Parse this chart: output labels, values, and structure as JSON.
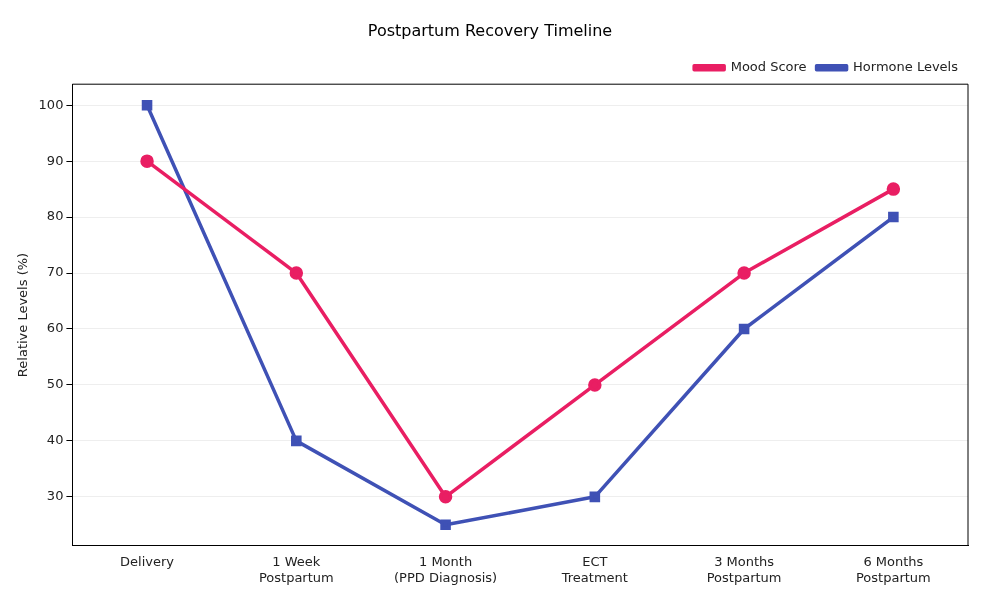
{
  "chart_data": {
    "type": "line",
    "title": "Postpartum Recovery Timeline",
    "ylabel": "Relative Levels (%)",
    "categories": [
      "Delivery",
      "1 Week\nPostpartum",
      "1 Month\n(PPD Diagnosis)",
      "ECT\nTreatment",
      "3 Months\nPostpartum",
      "6 Months\nPostpartum"
    ],
    "series": [
      {
        "name": "Mood Score",
        "color": "#e91e63",
        "marker": "circle",
        "values": [
          90,
          70,
          30,
          50,
          70,
          85
        ]
      },
      {
        "name": "Hormone Levels",
        "color": "#3f51b5",
        "marker": "square",
        "values": [
          100,
          40,
          25,
          30,
          60,
          80
        ]
      }
    ],
    "ylim": [
      21.25,
      103.75
    ],
    "yticks": [
      30,
      40,
      50,
      60,
      70,
      80,
      90,
      100
    ],
    "grid": "y",
    "legend": "top right",
    "line_style": "solid"
  }
}
